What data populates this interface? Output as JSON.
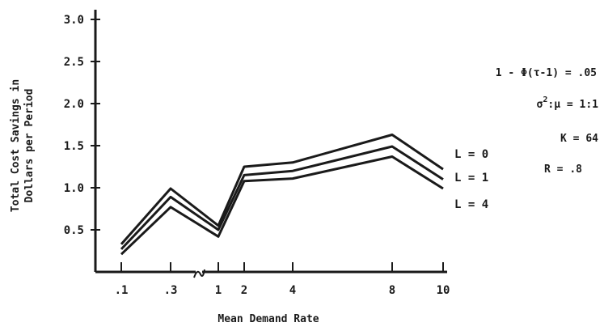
{
  "chart_data": {
    "type": "line",
    "title": "",
    "xlabel": "Mean Demand Rate",
    "ylabel_line1": "Total Cost Savings in",
    "ylabel_line2": "Dollars per Period",
    "x_tick_labels": [
      ".1",
      ".3",
      "1",
      "2",
      "4",
      "8",
      "10"
    ],
    "y_ticks": [
      "0.5",
      "1.0",
      "1.5",
      "2.0",
      "2.5",
      "3.0"
    ],
    "ylim": [
      0,
      3.0
    ],
    "grid": false,
    "series": [
      {
        "name": "L = 0",
        "values": [
          0.33,
          0.99,
          0.55,
          1.25,
          1.3,
          1.63,
          1.22
        ]
      },
      {
        "name": "L = 1",
        "values": [
          0.27,
          0.89,
          0.5,
          1.15,
          1.2,
          1.49,
          1.1
        ]
      },
      {
        "name": "L = 4",
        "values": [
          0.21,
          0.77,
          0.42,
          1.08,
          1.11,
          1.37,
          0.99
        ]
      }
    ],
    "annotations": [
      {
        "parts": [
          "1 - Φ(τ-1) = .05"
        ]
      },
      {
        "parts": [
          "σ",
          "2",
          ":μ = 1:1"
        ]
      },
      {
        "parts": [
          "K = 64"
        ]
      },
      {
        "parts": [
          "R = .8"
        ]
      }
    ],
    "colors": {
      "line": "#1a1a1a"
    }
  }
}
